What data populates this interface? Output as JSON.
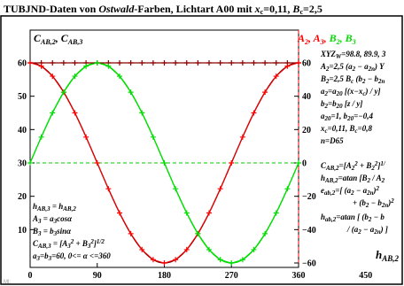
{
  "title": "TUBJND-Daten von Ostwald-Farben, Lichtart A00 mit xc=0,11, Bc=2,5",
  "title_parts": {
    "prefix": "TUBJND-Daten von ",
    "italic": "Ostwald",
    "middle": "-Farben, Lichtart A00 mit ",
    "xc_label": "x",
    "xc_sub": "c",
    "xc_value": "=0,11, ",
    "bc_label": "B",
    "bc_sub": "c",
    "bc_value": "=2,5"
  },
  "left_axis_title": "C_AB,2, C_AB,3",
  "right_axis_title": {
    "a": "A",
    "a_sub": "2",
    "sep1": ", ",
    "a3": "A",
    "a3_sub": "3",
    "sep2": ", ",
    "b": "B",
    "b_sub": "2",
    "sep3": ", ",
    "b3": "B",
    "b3_sub": "3"
  },
  "x_axis_title": "h_AB,2",
  "footer": "Ml:",
  "right_legend": [
    "XYZW=98.8, 89.9, 3",
    "A2=2,5 (a2 − a2n) Y",
    "B2=2,5 Bc (b2 − b2n",
    "a2=a20 [(x−xc) / y]",
    "b2=b20 [z / y]",
    "a20=1, b20=−0,4",
    "xc=0,11, Bc=0,8",
    "n=D65",
    "CAB,2=[A2² + B2²]¹/",
    "hAB,2=atan [B2 / A2",
    "eab,2=[ (a2 − a2n)²",
    "+ (b2 − b2n)²",
    "hab,2=atan [ (b2 − b",
    "/ (a2 − a2n) ]"
  ],
  "left_legend": [
    "hAB,3 = hAB,2",
    "A3 = a3cosα",
    "B3 = b3sinα",
    "CAB,3 = [A3² + B3²]¹/²",
    "a3=b3=60, 0<= α <=360"
  ],
  "colors": {
    "red": "#ff0000",
    "dark_red": "#8b0000",
    "green": "#00dd00",
    "light_green": "#33ff33",
    "dash_green": "#00cc00",
    "black": "#000000"
  },
  "chart_data": {
    "type": "line",
    "x_ticks": [
      "0",
      "90",
      "180",
      "270",
      "360"
    ],
    "x_extra_ticks": [
      "450"
    ],
    "xlim": [
      0,
      360
    ],
    "left_y_ticks": [
      "60",
      "50",
      "40",
      "30",
      "20",
      "10"
    ],
    "right_y_ticks": [
      "60",
      "40",
      "20",
      "0",
      "−20",
      "−40",
      "−60"
    ],
    "left_ylim": [
      0,
      60
    ],
    "right_ylim": [
      -60,
      60
    ],
    "grid": "dashed reference lines at y=60 and right-axis 0",
    "x": [
      0,
      15,
      30,
      45,
      60,
      75,
      90,
      105,
      120,
      135,
      150,
      165,
      180,
      195,
      210,
      225,
      240,
      255,
      270,
      285,
      300,
      315,
      330,
      345,
      360
    ],
    "series": [
      {
        "color": "dark_red",
        "axis": "left",
        "values": [
          60,
          60,
          60,
          60,
          60,
          60,
          60,
          60,
          60,
          60,
          60,
          60,
          60,
          60,
          60,
          60,
          60,
          60,
          60,
          60,
          60,
          60,
          60,
          60,
          60
        ]
      },
      {
        "color": "red",
        "axis": "right",
        "values": [
          60,
          58,
          52,
          42.4,
          30,
          15.5,
          0,
          -15.5,
          -30,
          -42.4,
          -52,
          -58,
          -60,
          -58,
          -52,
          -42.4,
          -30,
          -15.5,
          0,
          15.5,
          30,
          42.4,
          52,
          58,
          60
        ]
      },
      {
        "color": "green",
        "axis": "right",
        "values": [
          0,
          15.5,
          30,
          42.4,
          52,
          58,
          60,
          58,
          52,
          42.4,
          30,
          15.5,
          0,
          -15.5,
          -30,
          -42.4,
          -52,
          -58,
          -60,
          -58,
          -52,
          -42.4,
          -30,
          -15.5,
          0
        ]
      }
    ]
  }
}
